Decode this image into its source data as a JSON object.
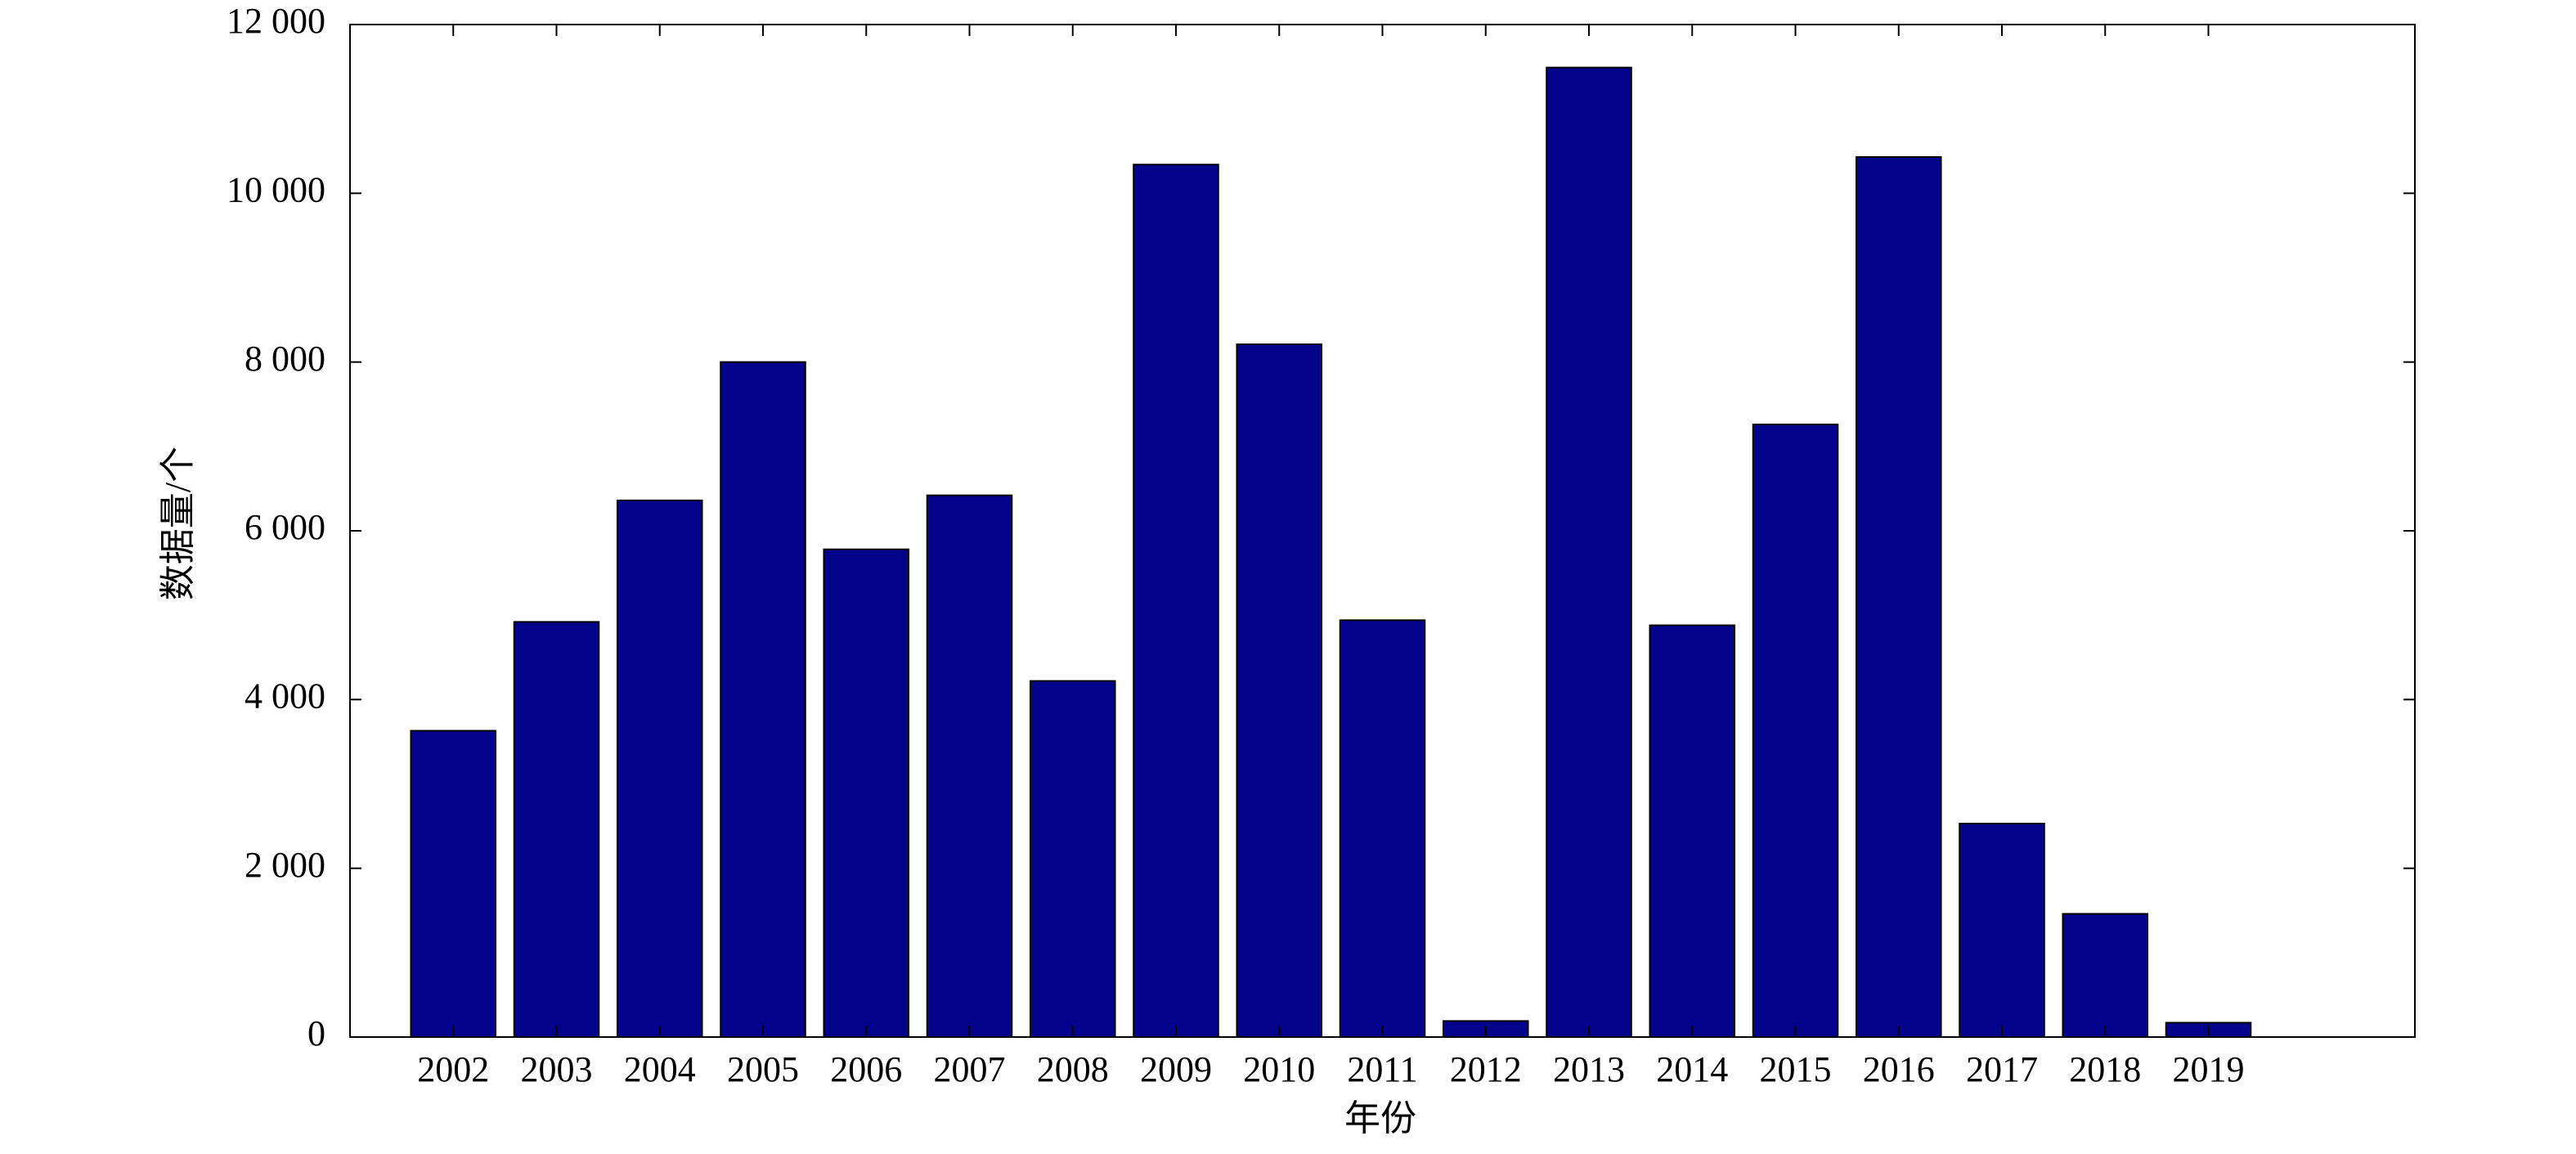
{
  "chart_data": {
    "type": "bar",
    "x_label": "年份",
    "y_label": "数据量/个",
    "x": [
      2002,
      2003,
      2004,
      2005,
      2006,
      2007,
      2008,
      2009,
      2010,
      2011,
      2012,
      2013,
      2014,
      2015,
      2016,
      2017,
      2018,
      2019
    ],
    "values": [
      3630,
      4920,
      6360,
      8000,
      5780,
      6420,
      4220,
      10340,
      8210,
      4940,
      190,
      11490,
      4880,
      7260,
      10430,
      2530,
      1460,
      170
    ],
    "color": "#03038c",
    "xlim": [
      2001,
      2021
    ],
    "xticks": [
      2002,
      2003,
      2004,
      2005,
      2006,
      2007,
      2008,
      2009,
      2010,
      2011,
      2012,
      2013,
      2014,
      2015,
      2016,
      2017,
      2018,
      2019
    ],
    "ylim": [
      0,
      12000
    ],
    "yticks": [
      0,
      {
        "value": 2000,
        "label": "2 000"
      },
      {
        "value": 4000,
        "label": "4 000"
      },
      {
        "value": 6000,
        "label": "6 000"
      },
      {
        "value": 8000,
        "label": "8 000"
      },
      {
        "value": 10000,
        "label": "10 000"
      },
      {
        "value": 12000,
        "label": "12 000"
      }
    ],
    "grid": false
  }
}
